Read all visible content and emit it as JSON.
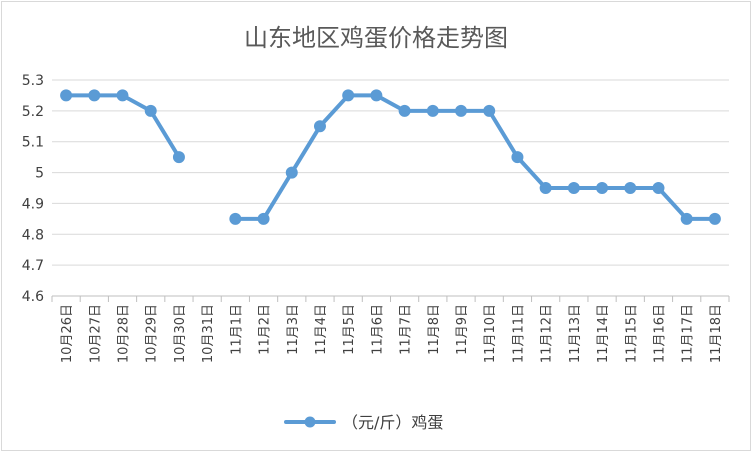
{
  "chart_data": {
    "type": "line",
    "title": "山东地区鸡蛋价格走势图",
    "categories": [
      "10月26日",
      "10月27日",
      "10月28日",
      "10月29日",
      "10月30日",
      "10月31日",
      "11月1日",
      "11月2日",
      "11月3日",
      "11月4日",
      "11月5日",
      "11月6日",
      "11月7日",
      "11月8日",
      "11月9日",
      "11月10日",
      "11月11日",
      "11月12日",
      "11月13日",
      "11月14日",
      "11月15日",
      "11月16日",
      "11月17日",
      "11月18日"
    ],
    "series": [
      {
        "name": "（元/斤）鸡蛋",
        "color": "#5b9bd5",
        "values": [
          5.25,
          5.25,
          5.25,
          5.2,
          5.05,
          null,
          4.85,
          4.85,
          5.0,
          5.15,
          5.25,
          5.25,
          5.2,
          5.2,
          5.2,
          5.2,
          5.05,
          4.95,
          4.95,
          4.95,
          4.95,
          4.95,
          4.85,
          4.85
        ]
      }
    ],
    "ylim": [
      4.6,
      5.3
    ],
    "yticks": [
      "4.6",
      "4.7",
      "4.8",
      "4.9",
      "5",
      "5.1",
      "5.2",
      "5.3"
    ],
    "grid": true,
    "legend_position": "bottom",
    "xlabel": "",
    "ylabel": ""
  }
}
